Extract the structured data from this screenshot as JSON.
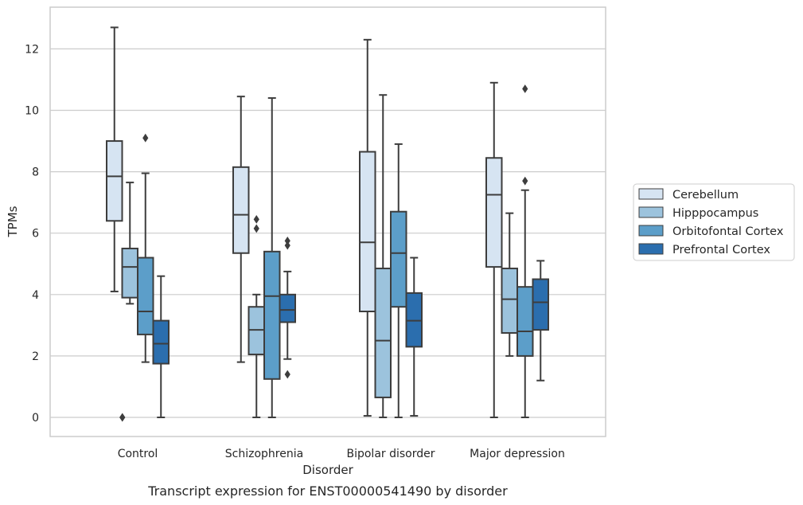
{
  "chart_data": {
    "type": "box",
    "caption": "Transcript expression for ENST00000541490 by disorder",
    "xlabel": "Disorder",
    "ylabel": "TPMs",
    "ylim": [
      -0.6,
      13.4
    ],
    "yticks": [
      0,
      2,
      4,
      6,
      8,
      10,
      12
    ],
    "grid": "horizontal",
    "legend_position": "right",
    "categories": [
      "Control",
      "Schizophrenia",
      "Bipolar disorder",
      "Major depression"
    ],
    "series": [
      {
        "name": "Cerebellum",
        "color": "#d6e4f2",
        "boxes": [
          {
            "whisker_low": 4.1,
            "q1": 6.4,
            "median": 7.85,
            "q3": 9.0,
            "whisker_high": 12.7,
            "outliers": []
          },
          {
            "whisker_low": 1.8,
            "q1": 5.35,
            "median": 6.6,
            "q3": 8.15,
            "whisker_high": 10.45,
            "outliers": []
          },
          {
            "whisker_low": 0.05,
            "q1": 3.45,
            "median": 5.7,
            "q3": 8.65,
            "whisker_high": 12.3,
            "outliers": []
          },
          {
            "whisker_low": 0.0,
            "q1": 4.9,
            "median": 7.25,
            "q3": 8.45,
            "whisker_high": 10.9,
            "outliers": []
          }
        ]
      },
      {
        "name": "Hipppocampus",
        "color": "#9cc3dd",
        "boxes": [
          {
            "whisker_low": 3.7,
            "q1": 3.9,
            "median": 4.9,
            "q3": 5.5,
            "whisker_high": 7.65,
            "outliers": []
          },
          {
            "whisker_low": 0.0,
            "q1": 2.05,
            "median": 2.85,
            "q3": 3.6,
            "whisker_high": 4.0,
            "outliers": [
              6.45,
              6.15
            ]
          },
          {
            "whisker_low": 0.0,
            "q1": 0.65,
            "median": 2.5,
            "q3": 4.85,
            "whisker_high": 10.5,
            "outliers": []
          },
          {
            "whisker_low": 2.0,
            "q1": 2.75,
            "median": 3.85,
            "q3": 4.85,
            "whisker_high": 6.65,
            "outliers": []
          }
        ]
      },
      {
        "name": "Orbitofontal Cortex",
        "color": "#5c9ec9",
        "boxes": [
          {
            "whisker_low": 1.8,
            "q1": 2.7,
            "median": 3.45,
            "q3": 5.2,
            "whisker_high": 7.95,
            "outliers": [
              9.1
            ]
          },
          {
            "whisker_low": 0.0,
            "q1": 1.25,
            "median": 3.95,
            "q3": 5.4,
            "whisker_high": 10.4,
            "outliers": []
          },
          {
            "whisker_low": 0.0,
            "q1": 3.6,
            "median": 5.35,
            "q3": 6.7,
            "whisker_high": 8.9,
            "outliers": []
          },
          {
            "whisker_low": 0.0,
            "q1": 2.0,
            "median": 2.8,
            "q3": 4.25,
            "whisker_high": 7.4,
            "outliers": [
              10.7,
              7.7
            ]
          }
        ]
      },
      {
        "name": "Prefrontal Cortex",
        "color": "#2b6eae",
        "boxes": [
          {
            "whisker_low": 0.0,
            "q1": 1.75,
            "median": 2.4,
            "q3": 3.15,
            "whisker_high": 4.6,
            "outliers": []
          },
          {
            "whisker_low": 1.9,
            "q1": 3.1,
            "median": 3.5,
            "q3": 4.0,
            "whisker_high": 4.75,
            "outliers": [
              5.75,
              5.6,
              1.4
            ]
          },
          {
            "whisker_low": 0.05,
            "q1": 2.3,
            "median": 3.15,
            "q3": 4.05,
            "whisker_high": 5.2,
            "outliers": []
          },
          {
            "whisker_low": 1.2,
            "q1": 2.85,
            "median": 3.75,
            "q3": 4.5,
            "whisker_high": 5.1,
            "outliers": []
          }
        ]
      }
    ],
    "extra_outliers": [
      {
        "category_index": 0,
        "series_index": 1,
        "values": [
          0.0,
          0.0
        ]
      }
    ]
  }
}
